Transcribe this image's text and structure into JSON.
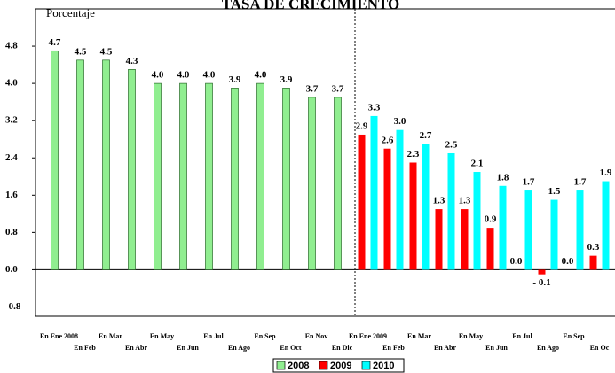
{
  "chart_data": {
    "type": "bar",
    "title": "TASA DE CRECIMIENTO",
    "y_label": "Porcentaje",
    "categories": [
      "En Ene 2008",
      "En Feb",
      "En Mar",
      "En Abr",
      "En May",
      "En Jun",
      "En Jul",
      "En Ago",
      "En Sep",
      "En Oct",
      "En Nov",
      "En Dic",
      "En Ene 2009",
      "En Feb",
      "En Mar",
      "En Abr",
      "En May",
      "En Jun",
      "En Jul",
      "En Ago",
      "En Sep",
      "En Oc"
    ],
    "series": [
      {
        "name": "2008",
        "color": "#90ee90",
        "values": [
          4.7,
          4.5,
          4.5,
          4.3,
          4.0,
          4.0,
          4.0,
          3.9,
          4.0,
          3.9,
          3.7,
          3.7,
          null,
          null,
          null,
          null,
          null,
          null,
          null,
          null,
          null,
          null
        ],
        "value_labels": [
          "4.7",
          "4.5",
          "4.5",
          "4.3",
          "4.0",
          "4.0",
          "4.0",
          "3.9",
          "4.0",
          "3.9",
          "3.7",
          "3.7",
          null,
          null,
          null,
          null,
          null,
          null,
          null,
          null,
          null,
          null
        ]
      },
      {
        "name": "2009",
        "color": "#ff0000",
        "values": [
          null,
          null,
          null,
          null,
          null,
          null,
          null,
          null,
          null,
          null,
          null,
          null,
          2.9,
          2.6,
          2.3,
          1.3,
          1.3,
          0.9,
          0.0,
          -0.1,
          0.0,
          0.3
        ],
        "value_labels": [
          null,
          null,
          null,
          null,
          null,
          null,
          null,
          null,
          null,
          null,
          null,
          null,
          "2.9",
          "2.6",
          "2.3",
          "1.3",
          "1.3",
          "0.9",
          "0.0",
          "- 0.1",
          "0.0",
          "0.3"
        ]
      },
      {
        "name": "2010",
        "color": "#00ffff",
        "values": [
          null,
          null,
          null,
          null,
          null,
          null,
          null,
          null,
          null,
          null,
          null,
          null,
          3.3,
          3.0,
          2.7,
          2.5,
          2.1,
          1.8,
          1.7,
          1.5,
          1.7,
          1.9
        ],
        "value_labels": [
          null,
          null,
          null,
          null,
          null,
          null,
          null,
          null,
          null,
          null,
          null,
          null,
          "3.3",
          "3.0",
          "2.7",
          "2.5",
          "2.1",
          "1.8",
          "1.7",
          "1.5",
          "1.7",
          "1.9"
        ]
      }
    ],
    "ylim": [
      -1.0,
      5.6
    ],
    "yticks": [
      -0.8,
      {
        "value": 0.0,
        "label": "0.0"
      },
      0.8,
      1.6,
      2.4,
      3.2,
      {
        "value": 4.0,
        "label": "4.0"
      },
      4.8
    ],
    "grid": false,
    "legend": "bottom"
  }
}
